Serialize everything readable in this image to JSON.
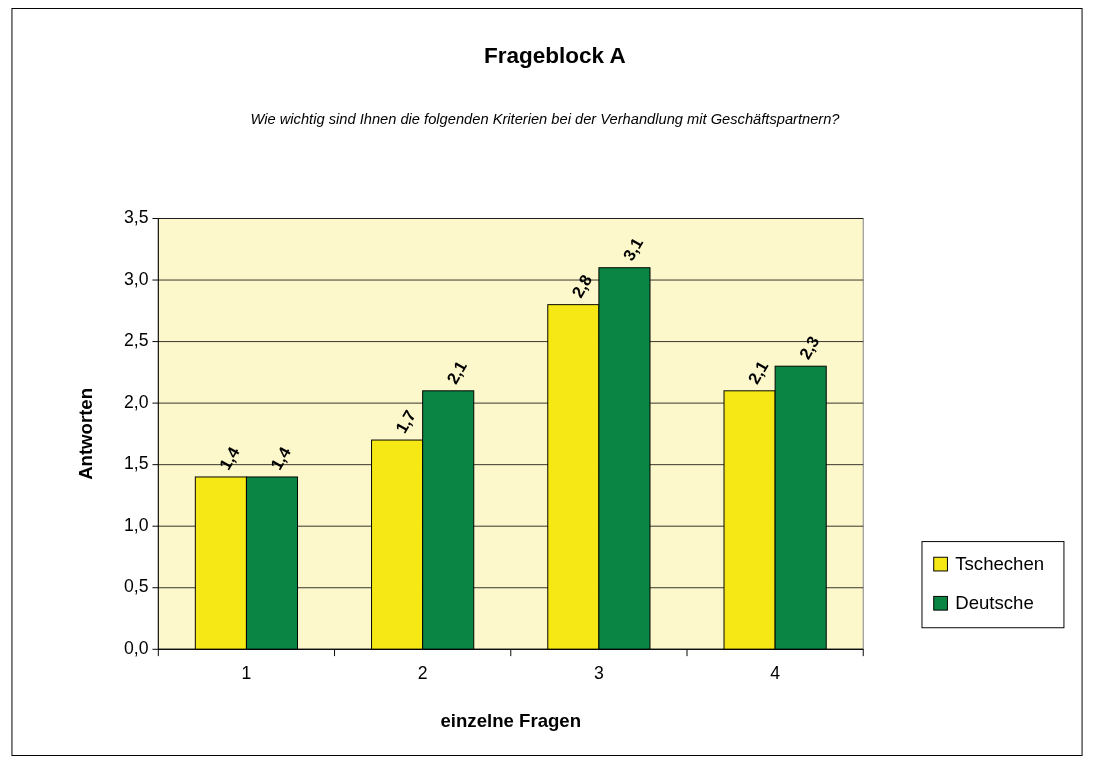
{
  "chart_data": {
    "type": "bar",
    "title": "Frageblock A",
    "subtitle": "Wie wichtig sind Ihnen die folgenden Kriterien bei der Verhandlung mit Geschäftspartnern?",
    "xlabel": "einzelne Fragen",
    "ylabel": "Antworten",
    "categories": [
      "1",
      "2",
      "3",
      "4"
    ],
    "series": [
      {
        "name": "Tschechen",
        "color": "#f5e814",
        "values": [
          1.4,
          1.7,
          2.8,
          2.1
        ],
        "value_labels": [
          "1,4",
          "1,7",
          "2,8",
          "2,1"
        ]
      },
      {
        "name": "Deutsche",
        "color": "#0b8543",
        "values": [
          1.4,
          2.1,
          3.1,
          2.3
        ],
        "value_labels": [
          "1,4",
          "2,1",
          "3,1",
          "2,3"
        ]
      }
    ],
    "ylim": [
      0,
      3.5
    ],
    "yticks": [
      {
        "value": 0,
        "label": "0,0"
      },
      {
        "value": 0.5,
        "label": "0,5"
      },
      {
        "value": 1,
        "label": "1,0"
      },
      {
        "value": 1.5,
        "label": "1,5"
      },
      {
        "value": 2,
        "label": "2,0"
      },
      {
        "value": 2.5,
        "label": "2,5"
      },
      {
        "value": 3,
        "label": "3,0"
      },
      {
        "value": 3.5,
        "label": "3,5"
      }
    ],
    "grid": "y",
    "legend": "right"
  }
}
